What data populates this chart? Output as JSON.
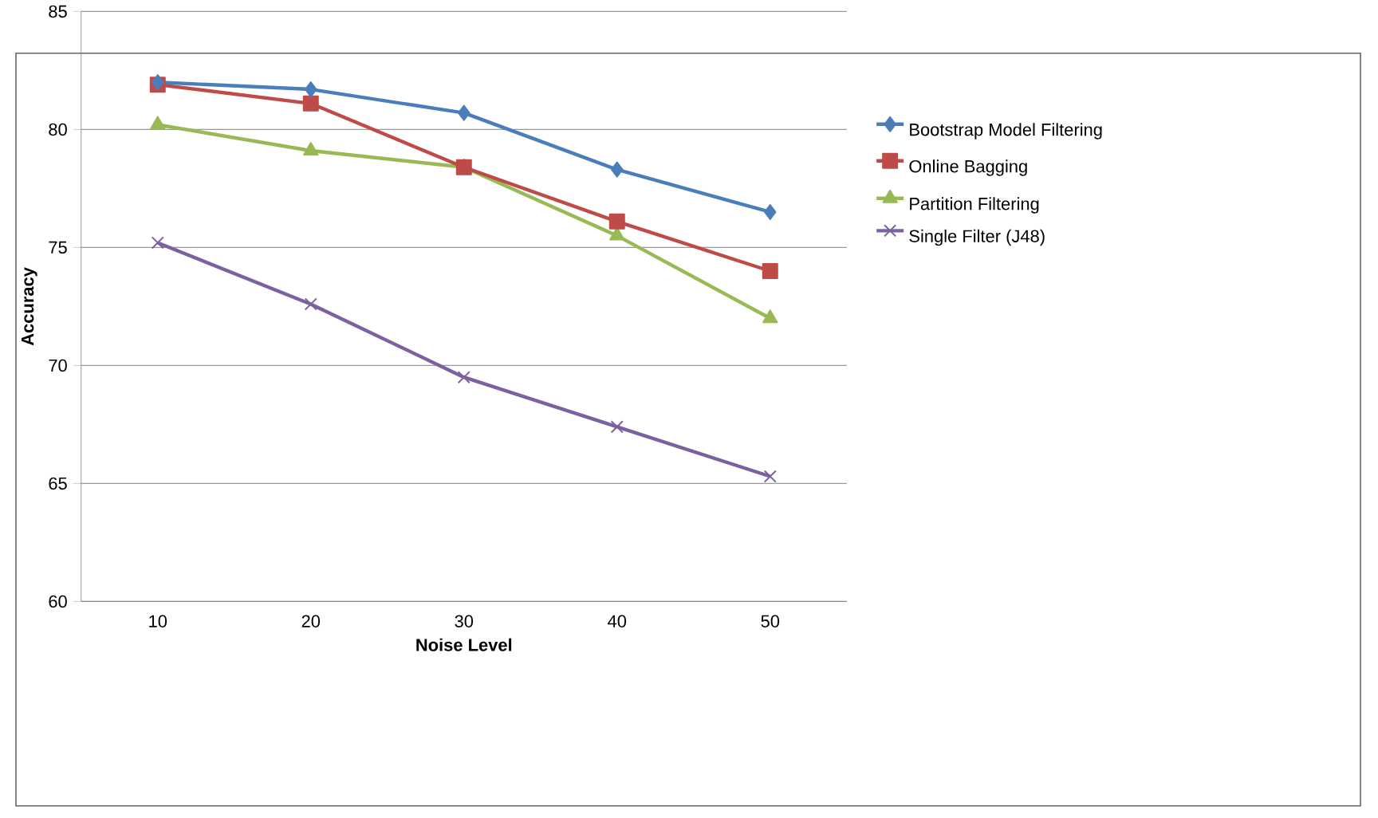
{
  "chart_data": {
    "type": "line",
    "xlabel": "Noise Level",
    "ylabel": "Accuracy",
    "categories": [
      "10",
      "20",
      "30",
      "40",
      "50"
    ],
    "ylim": [
      60,
      85
    ],
    "yticks": [
      60,
      65,
      70,
      75,
      80,
      85
    ],
    "grid": "y",
    "legend": "right",
    "series": [
      {
        "name": "Bootstrap Model Filtering",
        "color": "#4a7ebb",
        "marker": "diamond",
        "values": [
          82.0,
          81.7,
          80.7,
          78.3,
          76.5
        ]
      },
      {
        "name": "Online Bagging",
        "color": "#be4b48",
        "marker": "square",
        "values": [
          81.9,
          81.1,
          78.4,
          76.1,
          74.0
        ]
      },
      {
        "name": "Partition Filtering",
        "color": "#98b954",
        "marker": "triangle",
        "values": [
          80.2,
          79.1,
          78.4,
          75.5,
          72.0
        ]
      },
      {
        "name": "Single Filter (J48)",
        "color": "#7d60a0",
        "marker": "cross",
        "values": [
          75.2,
          72.6,
          69.5,
          67.4,
          65.3
        ]
      }
    ]
  }
}
